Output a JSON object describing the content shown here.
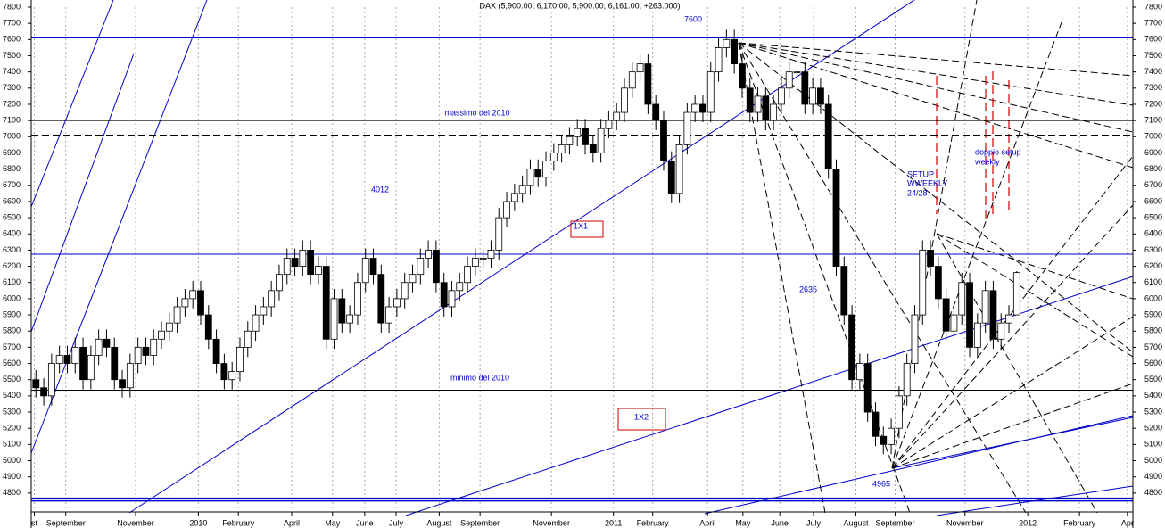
{
  "chart_data": {
    "type": "candlestick",
    "title": "DAX (5,900.00, 6,170.00, 5,900.00, 6,161.00, +263.000)",
    "ylim": [
      4700,
      7800
    ],
    "yticks": [
      4800,
      4900,
      5000,
      5100,
      5200,
      5300,
      5400,
      5500,
      5600,
      5700,
      5800,
      5900,
      6000,
      6100,
      6200,
      6300,
      6400,
      6500,
      6600,
      6700,
      6800,
      6900,
      7000,
      7100,
      7200,
      7300,
      7400,
      7500,
      7600,
      7700,
      7800
    ],
    "xlim": [
      -0.6,
      139.8
    ],
    "xticks": [
      {
        "value": -0.2,
        "label": "st"
      },
      {
        "value": 3.8,
        "label": "September"
      },
      {
        "value": 12.7,
        "label": "November"
      },
      {
        "value": 20.7,
        "label": "2010"
      },
      {
        "value": 25.8,
        "label": "February"
      },
      {
        "value": 32.6,
        "label": "April"
      },
      {
        "value": 37.8,
        "label": "May"
      },
      {
        "value": 41.9,
        "label": "June"
      },
      {
        "value": 45.9,
        "label": "July"
      },
      {
        "value": 51.4,
        "label": "August"
      },
      {
        "value": 56.6,
        "label": "September"
      },
      {
        "value": 65.7,
        "label": "November"
      },
      {
        "value": 73.6,
        "label": "2011"
      },
      {
        "value": 78.6,
        "label": "February"
      },
      {
        "value": 85.6,
        "label": "April"
      },
      {
        "value": 90.1,
        "label": "May"
      },
      {
        "value": 94.8,
        "label": "June"
      },
      {
        "value": 99.1,
        "label": "July"
      },
      {
        "value": 104.5,
        "label": "August"
      },
      {
        "value": 109.5,
        "label": "September"
      },
      {
        "value": 118.4,
        "label": "November"
      },
      {
        "value": 126.4,
        "label": "2012"
      },
      {
        "value": 133,
        "label": "February"
      },
      {
        "value": 139.1,
        "label": "Apr"
      }
    ],
    "up_color": "#ffffff",
    "down_color": "#000000",
    "open": [
      5500,
      5450,
      5400,
      5600,
      5650,
      5600,
      5700,
      5500,
      5650,
      5750,
      5700,
      5500,
      5450,
      5600,
      5700,
      5650,
      5750,
      5800,
      5850,
      5950,
      6000,
      6050,
      5900,
      5750,
      5600,
      5500,
      5550,
      5700,
      5800,
      5900,
      5950,
      6050,
      6150,
      6250,
      6200,
      6300,
      6150,
      6200,
      5750,
      6000,
      5850,
      5900,
      6100,
      6250,
      6150,
      5850,
      5950,
      6000,
      6100,
      6150,
      6250,
      6300,
      6100,
      5950,
      6050,
      6100,
      6200,
      6250,
      6250,
      6300,
      6500,
      6600,
      6650,
      6700,
      6800,
      6750,
      6850,
      6900,
      6950,
      7000,
      7050,
      6950,
      6900,
      7050,
      7100,
      7150,
      7300,
      7400,
      7450,
      7200,
      7100,
      6850,
      6650,
      6950,
      7150,
      7200,
      7150,
      7400,
      7550,
      7600,
      7450,
      7300,
      7150,
      7250,
      7100,
      7200,
      7300,
      7400,
      7400,
      7200,
      7300,
      7200,
      6800,
      6200,
      5900,
      5500,
      5600,
      5300,
      5150,
      5100,
      5200,
      5400,
      5600,
      5900,
      6300,
      6200,
      6000,
      5800,
      5900,
      6100,
      5700,
      5850,
      6050,
      5750,
      5850,
      5900
    ],
    "high": [
      5560,
      5510,
      5660,
      5710,
      5710,
      5760,
      5760,
      5710,
      5810,
      5810,
      5760,
      5560,
      5660,
      5760,
      5760,
      5810,
      5860,
      5910,
      6010,
      6060,
      6110,
      6110,
      5960,
      5810,
      5660,
      5610,
      5760,
      5860,
      5960,
      6010,
      6110,
      6210,
      6310,
      6310,
      6360,
      6360,
      6260,
      6260,
      6060,
      6060,
      5960,
      6160,
      6310,
      6310,
      6210,
      6010,
      6060,
      6160,
      6210,
      6310,
      6360,
      6360,
      6160,
      6110,
      6160,
      6260,
      6310,
      6310,
      6360,
      6560,
      6660,
      6710,
      6760,
      6860,
      6860,
      6910,
      6960,
      7010,
      7060,
      7110,
      7110,
      7010,
      7110,
      7160,
      7210,
      7360,
      7460,
      7510,
      7510,
      7260,
      7160,
      6910,
      7010,
      7210,
      7260,
      7260,
      7460,
      7610,
      7660,
      7660,
      7510,
      7360,
      7310,
      7310,
      7260,
      7360,
      7460,
      7460,
      7460,
      7360,
      7360,
      7260,
      6860,
      6260,
      5960,
      5660,
      5660,
      5360,
      5210,
      5260,
      5460,
      5660,
      5960,
      6360,
      6360,
      6260,
      6060,
      5960,
      6160,
      6160,
      5910,
      6110,
      6110,
      5910,
      5960,
      6170
    ],
    "low": [
      5390,
      5340,
      5340,
      5540,
      5540,
      5540,
      5440,
      5440,
      5590,
      5640,
      5440,
      5390,
      5390,
      5540,
      5590,
      5590,
      5690,
      5740,
      5790,
      5890,
      5940,
      5840,
      5690,
      5540,
      5440,
      5440,
      5490,
      5640,
      5740,
      5840,
      5890,
      5990,
      6090,
      6140,
      6140,
      6090,
      6090,
      5690,
      5690,
      5790,
      5790,
      5840,
      6040,
      6090,
      5790,
      5790,
      5890,
      5940,
      6040,
      6090,
      6190,
      6040,
      5890,
      5890,
      5990,
      6040,
      6140,
      6190,
      6190,
      6240,
      6440,
      6540,
      6590,
      6640,
      6690,
      6690,
      6790,
      6840,
      6890,
      6940,
      6890,
      6840,
      6840,
      6990,
      7040,
      7090,
      7240,
      7340,
      7140,
      7040,
      6790,
      6590,
      6590,
      6890,
      7090,
      7090,
      7090,
      7340,
      7490,
      7390,
      7240,
      7090,
      7090,
      7040,
      7040,
      7140,
      7240,
      7340,
      7140,
      7140,
      7140,
      6740,
      6140,
      5840,
      5440,
      5440,
      5240,
      5090,
      5040,
      5040,
      5140,
      5340,
      5540,
      5840,
      6140,
      5940,
      5740,
      5740,
      5840,
      5640,
      5640,
      5790,
      5690,
      5690,
      5790,
      5900
    ],
    "close": [
      5450,
      5400,
      5600,
      5650,
      5600,
      5700,
      5500,
      5650,
      5750,
      5700,
      5500,
      5450,
      5600,
      5700,
      5650,
      5750,
      5800,
      5850,
      5950,
      6000,
      6050,
      5900,
      5750,
      5600,
      5500,
      5550,
      5700,
      5800,
      5900,
      5950,
      6050,
      6150,
      6250,
      6200,
      6300,
      6150,
      6200,
      5750,
      6000,
      5850,
      5900,
      6100,
      6250,
      6150,
      5850,
      5950,
      6000,
      6100,
      6150,
      6250,
      6300,
      6100,
      5950,
      6050,
      6100,
      6200,
      6250,
      6250,
      6300,
      6500,
      6600,
      6650,
      6700,
      6800,
      6750,
      6850,
      6900,
      6950,
      7000,
      7050,
      6950,
      6900,
      7050,
      7100,
      7150,
      7300,
      7400,
      7450,
      7200,
      7100,
      6850,
      6650,
      6950,
      7150,
      7200,
      7150,
      7400,
      7550,
      7600,
      7450,
      7300,
      7150,
      7250,
      7100,
      7200,
      7300,
      7400,
      7400,
      7200,
      7300,
      7200,
      6800,
      6200,
      5900,
      5500,
      5600,
      5300,
      5150,
      5100,
      5200,
      5400,
      5600,
      5900,
      6300,
      6200,
      6000,
      5800,
      5900,
      6100,
      5700,
      5850,
      6050,
      5750,
      5850,
      5900,
      6161
    ],
    "hlines": [
      {
        "value": 7610,
        "color": "#0000cc",
        "style": "solid"
      },
      {
        "value": 7100,
        "color": "#000000",
        "style": "solid"
      },
      {
        "value": 7010,
        "color": "#000000",
        "style": "dashed"
      },
      {
        "value": 6275,
        "color": "#0000cc",
        "style": "solid"
      },
      {
        "value": 5435,
        "color": "#000000",
        "style": "solid"
      },
      {
        "value": 4760,
        "color": "#0000cc",
        "style": "double"
      }
    ],
    "annotations": [
      "7600",
      "massimo del 2010",
      "4012",
      "1X1",
      "2635",
      "SETUP",
      "WWEEKLY",
      "24/28",
      "doppio setup",
      "weekly",
      "minimo del 2010",
      "1X2",
      "4965"
    ]
  }
}
